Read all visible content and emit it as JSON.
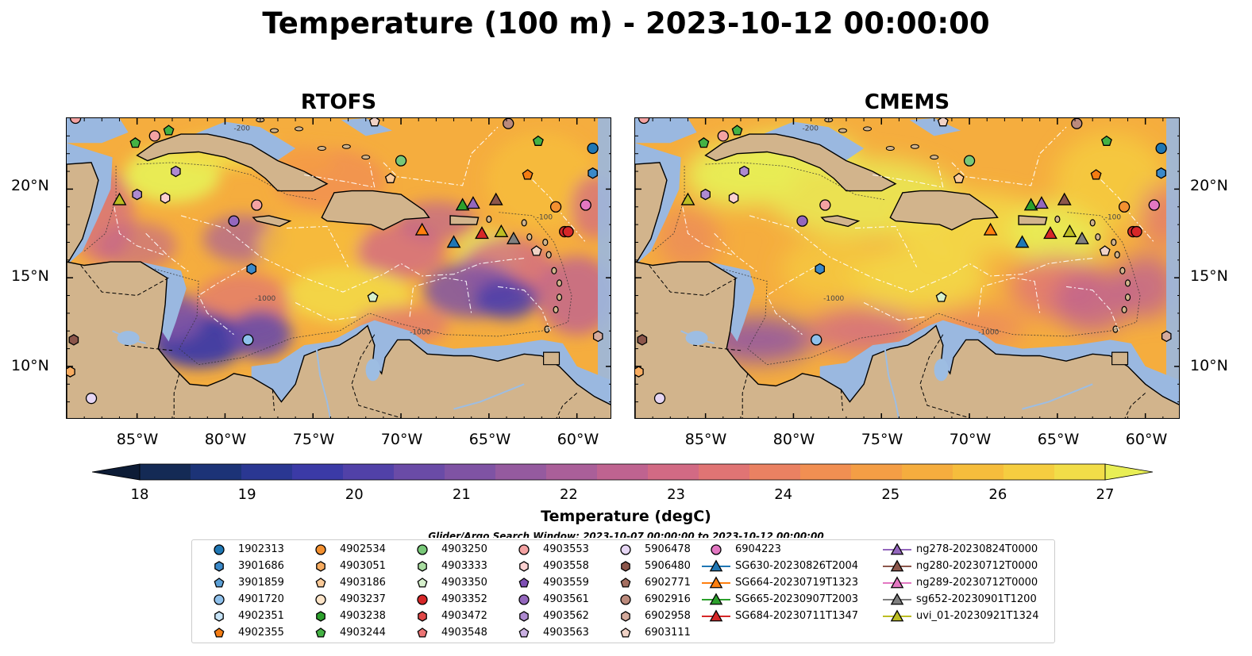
{
  "title": "Temperature (100 m) - 2023-10-12 00:00:00",
  "panels": [
    {
      "title": "RTOFS",
      "model": "rtofs"
    },
    {
      "title": "CMEMS",
      "model": "cmems"
    }
  ],
  "map": {
    "lon_range": [
      -89,
      -58
    ],
    "lat_range": [
      7,
      24
    ],
    "lon_ticks": [
      "85°W",
      "80°W",
      "75°W",
      "70°W",
      "65°W",
      "60°W"
    ],
    "lat_ticks": [
      "20°N",
      "15°N",
      "10°N"
    ],
    "contour_labels": [
      "-1000",
      "-200",
      "-100"
    ],
    "land_color": "#d2b48c",
    "shallow_water_color": "#9ab8e0"
  },
  "colorbar": {
    "label": "Temperature (degC)",
    "min": 18,
    "max": 27,
    "ticks": [
      "18",
      "19",
      "20",
      "21",
      "22",
      "23",
      "24",
      "25",
      "26",
      "27"
    ],
    "colormap": "thermal",
    "colors": [
      "#0d1c36",
      "#142a55",
      "#1c3377",
      "#2a3792",
      "#3b3aa6",
      "#5141a8",
      "#6a4ba7",
      "#7f53a4",
      "#955a9f",
      "#aa5f99",
      "#bf6390",
      "#d26a84",
      "#e07474",
      "#ea8162",
      "#f18f52",
      "#f49e45",
      "#f5ad3e",
      "#f6bd3c",
      "#f5cd40",
      "#f2dd48",
      "#e8ee55"
    ]
  },
  "search_window": "Glider/Argo Search Window: 2023-10-07 00:00:00 to 2023-10-12 00:00:00",
  "legend": [
    {
      "label": "1902313",
      "marker": "circle",
      "color": "#1f77b4"
    },
    {
      "label": "3901686",
      "marker": "hexagon",
      "color": "#3b89c9"
    },
    {
      "label": "3901859",
      "marker": "pentagon",
      "color": "#5b9fd6"
    },
    {
      "label": "4901720",
      "marker": "circle",
      "color": "#8fc1ec"
    },
    {
      "label": "4902351",
      "marker": "hexagon",
      "color": "#c7e4f8"
    },
    {
      "label": "4902355",
      "marker": "pentagon",
      "color": "#f47c12"
    },
    {
      "label": "4902534",
      "marker": "circle",
      "color": "#f39030"
    },
    {
      "label": "4903051",
      "marker": "hexagon",
      "color": "#f8ac60"
    },
    {
      "label": "4903186",
      "marker": "pentagon",
      "color": "#fbca98"
    },
    {
      "label": "4903237",
      "marker": "circle",
      "color": "#fde4c8"
    },
    {
      "label": "4903238",
      "marker": "hexagon",
      "color": "#2ca02c"
    },
    {
      "label": "4903244",
      "marker": "pentagon",
      "color": "#44b244"
    },
    {
      "label": "4903250",
      "marker": "circle",
      "color": "#78c878"
    },
    {
      "label": "4903333",
      "marker": "hexagon",
      "color": "#a8dca0"
    },
    {
      "label": "4903350",
      "marker": "pentagon",
      "color": "#d6f0cc"
    },
    {
      "label": "4903352",
      "marker": "circle",
      "color": "#d62728"
    },
    {
      "label": "4903472",
      "marker": "hexagon",
      "color": "#e04848"
    },
    {
      "label": "4903548",
      "marker": "pentagon",
      "color": "#ec7474"
    },
    {
      "label": "4903553",
      "marker": "circle",
      "color": "#f4a2a2"
    },
    {
      "label": "4903558",
      "marker": "hexagon",
      "color": "#fbd0d0"
    },
    {
      "label": "4903559",
      "marker": "pentagon",
      "color": "#7e4fb4"
    },
    {
      "label": "4903561",
      "marker": "circle",
      "color": "#9467bd"
    },
    {
      "label": "4903562",
      "marker": "hexagon",
      "color": "#ae8ad0"
    },
    {
      "label": "4903563",
      "marker": "pentagon",
      "color": "#cab0e2"
    },
    {
      "label": "5906478",
      "marker": "circle",
      "color": "#e6d6f4"
    },
    {
      "label": "5906480",
      "marker": "hexagon",
      "color": "#8c564b"
    },
    {
      "label": "6902771",
      "marker": "pentagon",
      "color": "#a46e60"
    },
    {
      "label": "6902916",
      "marker": "circle",
      "color": "#bb8a7c"
    },
    {
      "label": "6902958",
      "marker": "hexagon",
      "color": "#d4aa9c"
    },
    {
      "label": "6903111",
      "marker": "pentagon",
      "color": "#f0d2c6"
    },
    {
      "label": "6904223",
      "marker": "circle",
      "color": "#e377c2"
    },
    {
      "label": "SG630-20230826T2004",
      "marker": "triangle-line",
      "color": "#1f77b4"
    },
    {
      "label": "SG664-20230719T1323",
      "marker": "triangle-line",
      "color": "#ff7f0e"
    },
    {
      "label": "SG665-20230907T2003",
      "marker": "triangle-line",
      "color": "#2ca02c"
    },
    {
      "label": "SG684-20230711T1347",
      "marker": "triangle-line",
      "color": "#d62728"
    },
    {
      "label": "ng278-20230824T0000",
      "marker": "triangle-line",
      "color": "#9467bd"
    },
    {
      "label": "ng280-20230712T0000",
      "marker": "triangle-line",
      "color": "#8c564b"
    },
    {
      "label": "ng289-20230712T0000",
      "marker": "triangle-line",
      "color": "#e377c2"
    },
    {
      "label": "sg652-20230901T1200",
      "marker": "triangle-line",
      "color": "#7f7f7f"
    },
    {
      "label": "uvi_01-20230921T1324",
      "marker": "triangle-line",
      "color": "#bcbd22"
    }
  ]
}
